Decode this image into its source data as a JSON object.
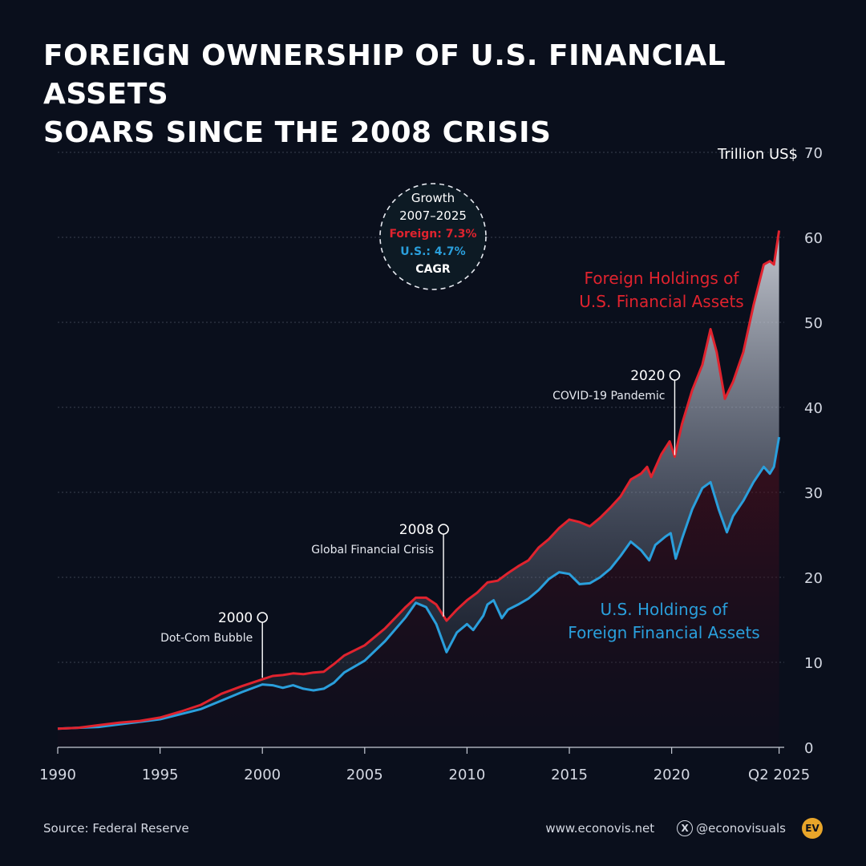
{
  "title_line1": "FOREIGN OWNERSHIP OF U.S. FINANCIAL ASSETS",
  "title_line2": "SOARS SINCE THE 2008 CRISIS",
  "source": "Source: Federal Reserve",
  "website": "www.econovis.net",
  "social_handle": "@econovisuals",
  "logo_text": "EV",
  "icons": {
    "social": "x-logo-icon",
    "logo": "econovis-logo-icon"
  },
  "colors": {
    "background": "#0a0f1c",
    "foreign": "#e0232e",
    "us": "#2a9fdc",
    "text": "#ffffff",
    "grid": "#3a4150"
  },
  "growth_box": {
    "line1": "Growth",
    "line2": "2007–2025",
    "foreign": "Foreign: 7.3%",
    "us": "U.S.: 4.7%",
    "line5": "CAGR"
  },
  "chart_data": {
    "type": "line",
    "ylabel": "Trillion US$",
    "ylim": [
      0,
      70
    ],
    "yticks": [
      0,
      10,
      20,
      30,
      40,
      50,
      60,
      70
    ],
    "xlim": [
      1990,
      2025.5
    ],
    "xticks": [
      {
        "v": 1990,
        "label": "1990"
      },
      {
        "v": 1995,
        "label": "1995"
      },
      {
        "v": 2000,
        "label": "2000"
      },
      {
        "v": 2005,
        "label": "2005"
      },
      {
        "v": 2010,
        "label": "2010"
      },
      {
        "v": 2015,
        "label": "2015"
      },
      {
        "v": 2020,
        "label": "2020"
      },
      {
        "v": 2025.25,
        "label": "Q2 2025"
      }
    ],
    "grid": true,
    "series": [
      {
        "name": "Foreign Holdings of U.S. Financial Assets",
        "label_line1": "Foreign Holdings of",
        "label_line2": "U.S. Financial Assets",
        "color": "#e0232e",
        "points": [
          [
            1990,
            2.2
          ],
          [
            1991,
            2.3
          ],
          [
            1992,
            2.6
          ],
          [
            1993,
            2.9
          ],
          [
            1994,
            3.1
          ],
          [
            1995,
            3.5
          ],
          [
            1996,
            4.2
          ],
          [
            1997,
            5.0
          ],
          [
            1998,
            6.3
          ],
          [
            1999,
            7.2
          ],
          [
            2000,
            8.0
          ],
          [
            2000.5,
            8.4
          ],
          [
            2001,
            8.5
          ],
          [
            2001.5,
            8.7
          ],
          [
            2002,
            8.6
          ],
          [
            2002.5,
            8.8
          ],
          [
            2003,
            8.9
          ],
          [
            2003.5,
            9.8
          ],
          [
            2004,
            10.8
          ],
          [
            2005,
            12.0
          ],
          [
            2006,
            14.0
          ],
          [
            2007,
            16.5
          ],
          [
            2007.5,
            17.6
          ],
          [
            2008,
            17.6
          ],
          [
            2008.5,
            16.8
          ],
          [
            2009,
            14.9
          ],
          [
            2009.5,
            16.2
          ],
          [
            2010,
            17.3
          ],
          [
            2010.5,
            18.2
          ],
          [
            2011,
            19.4
          ],
          [
            2011.5,
            19.6
          ],
          [
            2012,
            20.5
          ],
          [
            2012.5,
            21.3
          ],
          [
            2013,
            22.0
          ],
          [
            2013.5,
            23.5
          ],
          [
            2014,
            24.5
          ],
          [
            2014.5,
            25.8
          ],
          [
            2015,
            26.8
          ],
          [
            2015.5,
            26.5
          ],
          [
            2016,
            26.0
          ],
          [
            2016.5,
            27.0
          ],
          [
            2017,
            28.2
          ],
          [
            2017.5,
            29.5
          ],
          [
            2018,
            31.5
          ],
          [
            2018.5,
            32.2
          ],
          [
            2018.8,
            33.0
          ],
          [
            2019,
            31.8
          ],
          [
            2019.5,
            34.5
          ],
          [
            2019.9,
            36.0
          ],
          [
            2020.15,
            34.2
          ],
          [
            2020.5,
            38.0
          ],
          [
            2021,
            42.0
          ],
          [
            2021.5,
            45.0
          ],
          [
            2021.9,
            49.2
          ],
          [
            2022.2,
            46.5
          ],
          [
            2022.6,
            41.0
          ],
          [
            2023,
            43.0
          ],
          [
            2023.5,
            46.5
          ],
          [
            2024,
            52.0
          ],
          [
            2024.5,
            56.8
          ],
          [
            2024.8,
            57.2
          ],
          [
            2025.0,
            56.8
          ],
          [
            2025.25,
            60.8
          ]
        ]
      },
      {
        "name": "U.S. Holdings of Foreign Financial Assets",
        "label_line1": "U.S. Holdings of",
        "label_line2": "Foreign Financial Assets",
        "color": "#2a9fdc",
        "points": [
          [
            1990,
            2.2
          ],
          [
            1991,
            2.3
          ],
          [
            1992,
            2.4
          ],
          [
            1993,
            2.7
          ],
          [
            1994,
            3.0
          ],
          [
            1995,
            3.3
          ],
          [
            1996,
            3.9
          ],
          [
            1997,
            4.5
          ],
          [
            1998,
            5.5
          ],
          [
            1999,
            6.5
          ],
          [
            2000,
            7.4
          ],
          [
            2000.5,
            7.3
          ],
          [
            2001,
            7.0
          ],
          [
            2001.5,
            7.3
          ],
          [
            2002,
            6.9
          ],
          [
            2002.5,
            6.7
          ],
          [
            2003,
            6.9
          ],
          [
            2003.5,
            7.6
          ],
          [
            2004,
            8.8
          ],
          [
            2005,
            10.2
          ],
          [
            2006,
            12.5
          ],
          [
            2007,
            15.3
          ],
          [
            2007.5,
            17.0
          ],
          [
            2008,
            16.5
          ],
          [
            2008.5,
            14.5
          ],
          [
            2009,
            11.2
          ],
          [
            2009.5,
            13.5
          ],
          [
            2010,
            14.5
          ],
          [
            2010.3,
            13.8
          ],
          [
            2010.8,
            15.5
          ],
          [
            2011,
            16.8
          ],
          [
            2011.3,
            17.3
          ],
          [
            2011.7,
            15.2
          ],
          [
            2012,
            16.2
          ],
          [
            2012.5,
            16.8
          ],
          [
            2013,
            17.5
          ],
          [
            2013.5,
            18.5
          ],
          [
            2014,
            19.8
          ],
          [
            2014.5,
            20.6
          ],
          [
            2015,
            20.4
          ],
          [
            2015.5,
            19.2
          ],
          [
            2016,
            19.3
          ],
          [
            2016.5,
            20.0
          ],
          [
            2017,
            21.0
          ],
          [
            2017.5,
            22.5
          ],
          [
            2018,
            24.2
          ],
          [
            2018.5,
            23.2
          ],
          [
            2018.9,
            22.0
          ],
          [
            2019.2,
            23.8
          ],
          [
            2019.7,
            24.8
          ],
          [
            2019.95,
            25.2
          ],
          [
            2020.2,
            22.2
          ],
          [
            2020.5,
            24.5
          ],
          [
            2021,
            28.0
          ],
          [
            2021.5,
            30.5
          ],
          [
            2021.9,
            31.2
          ],
          [
            2022.3,
            28.0
          ],
          [
            2022.7,
            25.3
          ],
          [
            2023,
            27.2
          ],
          [
            2023.5,
            29.0
          ],
          [
            2024,
            31.2
          ],
          [
            2024.5,
            33.0
          ],
          [
            2024.8,
            32.2
          ],
          [
            2025.0,
            33.0
          ],
          [
            2025.25,
            36.5
          ]
        ]
      }
    ],
    "annotations": [
      {
        "year": 2000,
        "label": "2000",
        "sub": "Dot-Com Bubble",
        "value": 8.0
      },
      {
        "year": 2008.85,
        "label": "2008",
        "sub": "Global Financial Crisis",
        "value": 15.2
      },
      {
        "year": 2020.15,
        "label": "2020",
        "sub": "COVID-19 Pandemic",
        "value": 34.2
      }
    ]
  }
}
